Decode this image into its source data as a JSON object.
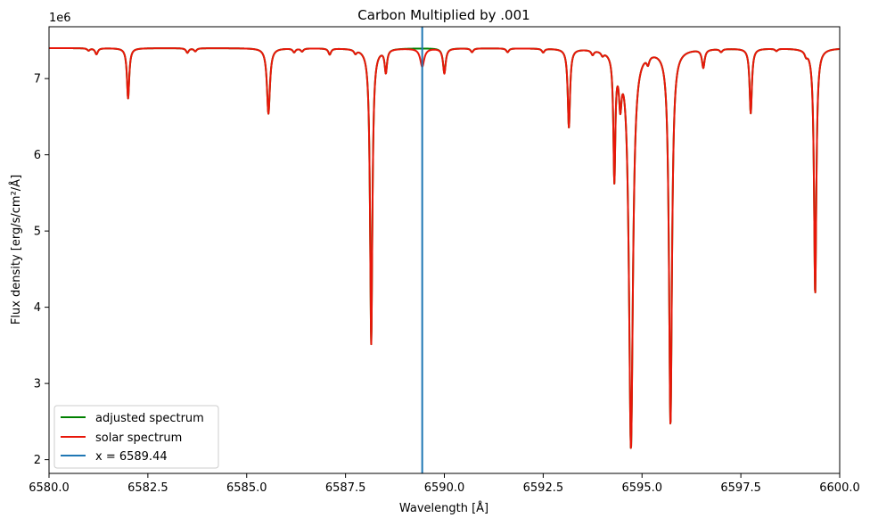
{
  "chart_data": {
    "type": "line",
    "title": "Carbon Multiplied by .001",
    "xlabel": "Wavelength [Å]",
    "ylabel": "Flux density [erg/s/cm²/Å]",
    "y_offset_label": "1e6",
    "xlim": [
      6580,
      6600
    ],
    "ylim": [
      1.82,
      7.68
    ],
    "y_scale_factor": 1000000,
    "x_ticks": [
      6580,
      6582.5,
      6585,
      6587.5,
      6590,
      6592.5,
      6595,
      6597.5,
      6600
    ],
    "x_tick_labels": [
      "6580.0",
      "6582.5",
      "6585.0",
      "6587.5",
      "6590.0",
      "6592.5",
      "6595.0",
      "6597.5",
      "6600.0"
    ],
    "y_ticks": [
      2,
      3,
      4,
      5,
      6,
      7
    ],
    "y_tick_labels": [
      "2",
      "3",
      "4",
      "5",
      "6",
      "7"
    ],
    "grid": false,
    "legend_position": "lower-left",
    "continuum": 7.4,
    "absorption_lines": [
      {
        "x": 6581.0,
        "depth": 0.03,
        "width": 0.04
      },
      {
        "x": 6581.2,
        "depth": 0.08,
        "width": 0.04
      },
      {
        "x": 6582.0,
        "depth": 0.66,
        "width": 0.035
      },
      {
        "x": 6583.5,
        "depth": 0.06,
        "width": 0.04
      },
      {
        "x": 6583.7,
        "depth": 0.04,
        "width": 0.04
      },
      {
        "x": 6585.55,
        "depth": 0.86,
        "width": 0.045
      },
      {
        "x": 6586.2,
        "depth": 0.05,
        "width": 0.04
      },
      {
        "x": 6586.4,
        "depth": 0.04,
        "width": 0.04
      },
      {
        "x": 6587.1,
        "depth": 0.08,
        "width": 0.04
      },
      {
        "x": 6587.75,
        "depth": 0.05,
        "width": 0.04
      },
      {
        "x": 6588.15,
        "depth": 3.88,
        "width": 0.035
      },
      {
        "x": 6588.52,
        "depth": 0.3,
        "width": 0.035
      },
      {
        "x": 6589.44,
        "depth": 0.24,
        "width": 0.06
      },
      {
        "x": 6590.0,
        "depth": 0.33,
        "width": 0.04
      },
      {
        "x": 6590.7,
        "depth": 0.05,
        "width": 0.04
      },
      {
        "x": 6591.6,
        "depth": 0.05,
        "width": 0.04
      },
      {
        "x": 6592.5,
        "depth": 0.05,
        "width": 0.04
      },
      {
        "x": 6593.15,
        "depth": 1.03,
        "width": 0.035
      },
      {
        "x": 6593.75,
        "depth": 0.06,
        "width": 0.04
      },
      {
        "x": 6594.0,
        "depth": 0.05,
        "width": 0.04
      },
      {
        "x": 6594.3,
        "depth": 1.63,
        "width": 0.03
      },
      {
        "x": 6594.45,
        "depth": 0.55,
        "width": 0.04
      },
      {
        "x": 6594.72,
        "depth": 5.23,
        "width": 0.06
      },
      {
        "x": 6595.15,
        "depth": 0.1,
        "width": 0.04
      },
      {
        "x": 6595.72,
        "depth": 4.93,
        "width": 0.045
      },
      {
        "x": 6596.55,
        "depth": 0.24,
        "width": 0.04
      },
      {
        "x": 6597.0,
        "depth": 0.04,
        "width": 0.04
      },
      {
        "x": 6597.75,
        "depth": 0.85,
        "width": 0.035
      },
      {
        "x": 6598.4,
        "depth": 0.03,
        "width": 0.04
      },
      {
        "x": 6599.15,
        "depth": 0.06,
        "width": 0.04
      },
      {
        "x": 6599.38,
        "depth": 3.23,
        "width": 0.035
      }
    ],
    "series": [
      {
        "name": "adjusted spectrum",
        "color": "#008000",
        "dip_scale_at_marker": 0.0
      },
      {
        "name": "solar spectrum",
        "color": "#e8170a"
      },
      {
        "name": "x = 6589.44",
        "color": "#1f77b4",
        "vline_x": 6589.44
      }
    ]
  }
}
